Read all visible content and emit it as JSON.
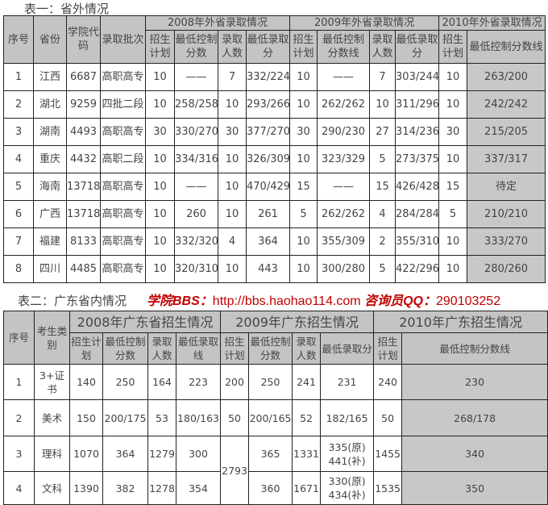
{
  "table1": {
    "title": "表一：省外情况",
    "header_top": [
      "序号",
      "省份",
      "学院代码",
      "录取批次",
      "2008年外省录取情况",
      "2009年外省录取情况",
      "2010年外省录取情况"
    ],
    "header_sub": [
      "招生计划",
      "最低控制分数",
      "录取人数",
      "最低录取分",
      "招生计划",
      "最低控制分数线",
      "录取人数",
      "最低录取分",
      "招生计划",
      "最低控制分数线"
    ],
    "rows": [
      [
        "1",
        "江西",
        "6687",
        "高职高专",
        "10",
        "——",
        "7",
        "332/224",
        "10",
        "——",
        "7",
        "303/244",
        "10",
        "263/200"
      ],
      [
        "2",
        "湖北",
        "9259",
        "四批二段",
        "10",
        "258/258",
        "10",
        "293/266",
        "10",
        "262/262",
        "10",
        "311/296",
        "10",
        "242/242"
      ],
      [
        "3",
        "湖南",
        "4493",
        "高职高专",
        "30",
        "330/270",
        "30",
        "377/270",
        "30",
        "290/230",
        "27",
        "314/236",
        "30",
        "215/205"
      ],
      [
        "4",
        "重庆",
        "4432",
        "高职二段",
        "10",
        "334/316",
        "10",
        "326/309",
        "10",
        "323/329",
        "5",
        "273/375",
        "10",
        "337/317"
      ],
      [
        "5",
        "海南",
        "13718",
        "高职高专",
        "10",
        "——",
        "10",
        "470/429",
        "15",
        "——",
        "15",
        "426/428",
        "15",
        "待定"
      ],
      [
        "6",
        "广西",
        "13718",
        "高职高专",
        "10",
        "260",
        "10",
        "261",
        "5",
        "262/262",
        "4",
        "284/284",
        "5",
        "210/210"
      ],
      [
        "7",
        "福建",
        "8133",
        "高职高专",
        "10",
        "332/320",
        "4",
        "364",
        "10",
        "355/309",
        "2",
        "355/310",
        "10",
        "333/270"
      ],
      [
        "8",
        "四川",
        "4485",
        "高职高专",
        "10",
        "320/310",
        "10",
        "443",
        "10",
        "300/280",
        "5",
        "422/296",
        "10",
        "280/260"
      ]
    ]
  },
  "table2": {
    "title": "表二：广东省内情况",
    "header_top": [
      "序号",
      "考生类别",
      "2008年广东省招生情况",
      "2009年广东招生情况",
      "2010年广东招生情况"
    ],
    "header_sub": [
      "招生计划",
      "最低控制分数",
      "录取人数",
      "最低录取线",
      "招生计划",
      "最低控制分数",
      "录取人数",
      "最低录取分",
      "招生计划",
      "最低控制分数线"
    ],
    "rows": [
      [
        "1",
        "3+证书",
        "140",
        "250",
        "164",
        "223",
        "200",
        "250",
        "241",
        "231",
        "240",
        "230"
      ],
      [
        "2",
        "美术",
        "150",
        "200/175",
        "53",
        "180/163",
        "50",
        "200/165",
        "52",
        "182/165",
        "50",
        "268/178"
      ],
      [
        "3",
        "理科",
        "1070",
        "364",
        "1279",
        "300",
        "2793",
        "365",
        "1331",
        "335(原)\n441(补)",
        "1455",
        "340"
      ],
      [
        "4",
        "文科",
        "1390",
        "382",
        "1278",
        "354",
        null,
        "360",
        "1671",
        "330(原)\n434(补)",
        "1535",
        "350"
      ]
    ]
  },
  "promo": {
    "bbs_label": "学院BBS：",
    "url": "http://bbs.haohao114.com",
    "qq_label": "咨询员QQ：",
    "qq": "290103252"
  },
  "colors": {
    "header_bg": "#c4c4c4",
    "highlight_col": "#c8c8c8",
    "promo": "#c00000"
  }
}
